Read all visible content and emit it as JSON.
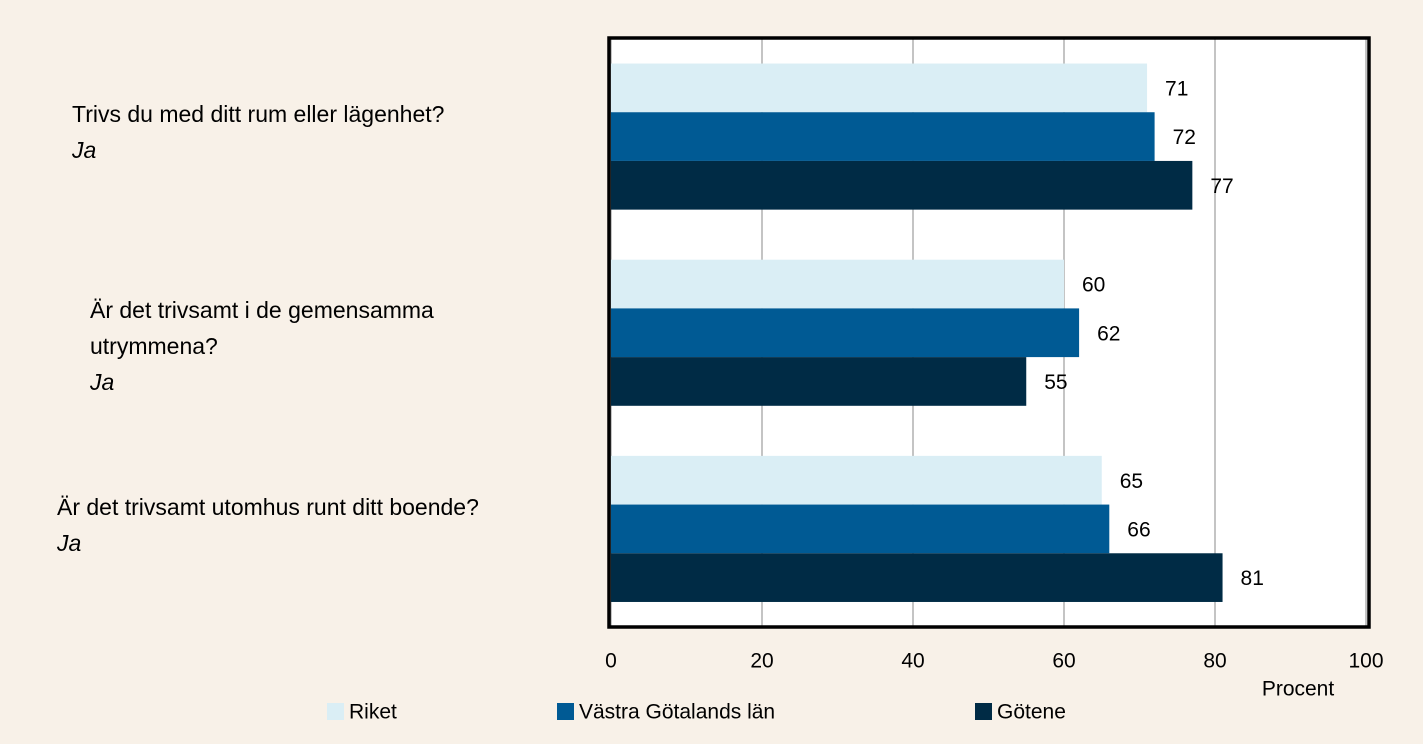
{
  "chart_data": {
    "type": "barh",
    "categories": [
      "Trivs du med ditt rum eller lägenhet?",
      "Är det trivsamt i de gemensamma utrymmena?",
      "Är det trivsamt utomhus runt ditt boende?"
    ],
    "answers": [
      "Ja",
      "Ja",
      "Ja"
    ],
    "series": [
      {
        "name": "Riket",
        "color": "#daeef5",
        "values": [
          71,
          60,
          65
        ]
      },
      {
        "name": "Västra Götalands län",
        "color": "#005a94",
        "values": [
          72,
          62,
          66
        ]
      },
      {
        "name": "Götene",
        "color": "#002b45",
        "values": [
          77,
          55,
          81
        ]
      }
    ],
    "xlabel": "Procent",
    "xlim": [
      0,
      100
    ],
    "xticks": [
      0,
      20,
      40,
      60,
      80,
      100
    ],
    "grid": true
  }
}
